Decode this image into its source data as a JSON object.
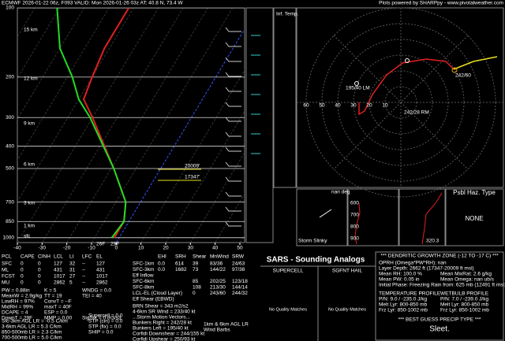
{
  "header": {
    "left": "ECMWF 2026-01-22 06z, F093  VALID: Mon 2026-01-26 03z  AT: 40.8 N, 73.4 W",
    "right": "Plots powered by SHARPpy - www.pivotalweather.com"
  },
  "chart_data": {
    "type": "skewt",
    "ylim": [
      1050,
      100
    ],
    "yticks": [
      100,
      200,
      300,
      400,
      500,
      700,
      850,
      1000
    ],
    "xlim": [
      -40,
      50
    ],
    "xticks": [
      -40,
      -30,
      -20,
      -10,
      0,
      10,
      20,
      30,
      40,
      50
    ],
    "grid": true,
    "pressure": [
      1000,
      850,
      700,
      500,
      300,
      250,
      200,
      150,
      100
    ],
    "series": [
      {
        "color": "#e02020",
        "values": [
          -2,
          -2,
          -6,
          -19,
          -40,
          -48,
          -50,
          -52,
          -52
        ]
      },
      {
        "color": "#22dd22",
        "values": [
          -3,
          -2,
          -6,
          -19,
          -41,
          -50,
          -58,
          -70,
          -81
        ]
      }
    ],
    "height_labels": [
      "15 km",
      "12 km",
      "9 km",
      "6 km",
      "3 km",
      "1 km",
      "sfc"
    ],
    "surface_dewpoint": "26F",
    "surface_temp": "29F",
    "dgz_top": "20009'",
    "dgz_bottom": "17347'"
  },
  "side_panels": {
    "inf_temp": "Inf. Temp.",
    "nan_deg": "nan deg",
    "storm_slinky": "Storm Slinky",
    "pressures": [
      "600",
      "700",
      "800",
      "900"
    ],
    "theta": "320.3",
    "haz_title": "Psbl Haz. Type",
    "haz_value": "NONE"
  },
  "hodograph": {
    "ring_labels": [
      "10",
      "20",
      "30",
      "40",
      "50",
      "60"
    ],
    "labels": [
      "195/40 LM",
      "242/28 RM",
      "242/60"
    ]
  },
  "thermo": {
    "header": [
      "PCL",
      "CAPE",
      "CINH",
      "LCL",
      "LI",
      "LFC",
      "EL"
    ],
    "rows": [
      [
        "SFC",
        "0",
        "0",
        "127",
        "32",
        "--",
        "127"
      ],
      [
        "ML",
        "0",
        "0",
        "431",
        "31",
        "--",
        "431"
      ],
      [
        "FCST",
        "0",
        "0",
        "1017",
        "27",
        "--",
        "1017"
      ],
      [
        "MU",
        "0",
        "0",
        "2862",
        "5",
        "--",
        "2862"
      ]
    ],
    "indices": [
      [
        "PW = 0.88in",
        "K = 5",
        "WNDG = 0.0"
      ],
      [
        "MeanW = 2.9g/kg",
        "TT = 19",
        "TEI = 40"
      ],
      [
        "LowRH = 97%",
        "ConvT = --F"
      ],
      [
        "MidRH = 99%",
        "maxT = 40F"
      ],
      [
        "DCAPE = 4",
        "ESP = 0.0"
      ],
      [
        "DownT = 29F",
        "MMP = 0.00",
        "SigSvr = 0 m3/s3"
      ]
    ],
    "lapse": [
      "Sfc-3km AGL LR = -0.5 C/km",
      "3-6km AGL LR = 5.3 C/km",
      "850-500mb LR = 2.3 C/km",
      "700-500mb LR = 5.0 C/km"
    ],
    "composites": [
      "Supercell = 0.0",
      "STP (cin) = 0.0",
      "STP (fix) = 0.0",
      "SHIP = 0.0"
    ]
  },
  "kinematics": {
    "header": [
      "EHI",
      "SRH",
      "Shear",
      "MnWind",
      "SRW"
    ],
    "rows": [
      [
        "SFC-1km",
        "0.0",
        "614",
        "39",
        "83/36",
        "24/63"
      ],
      [
        "SFC-3km",
        "0.0",
        "1682",
        "73",
        "144/22",
        "97/38"
      ],
      [
        "Eff Inflow",
        null,
        null,
        null,
        null,
        null
      ],
      [
        "SFC-6km",
        null,
        null,
        "85",
        "202/25",
        "123/18"
      ],
      [
        "SFC-8km",
        null,
        null,
        "108",
        "213/30",
        "144/14"
      ],
      [
        "LCL-EL (Cloud Layer)",
        null,
        null,
        "0",
        "243/60",
        "244/32"
      ],
      [
        "Eff Shear (EBWD)",
        null,
        null,
        null,
        null,
        null
      ]
    ],
    "lines": [
      "BRN Shear = 343 m2/s2",
      "4-6km SR Wind = 233/40 kt",
      "...Storm Motion Vectors...",
      "Bunkers Right = 242/28 kt",
      "Bunkers Left = 195/40 kt",
      "Corfidi Downshear = 244/155 kt",
      "Corfidi Upshear = 250/93 kt"
    ],
    "legend": [
      "1km & 6km AGL LR",
      "Wind Barbs"
    ]
  },
  "sars": {
    "title": "SARS - Sounding Analogs",
    "supercell": "SUPERCELL",
    "hail": "SGFNT HAIL",
    "no_match": [
      "No Quality Matches",
      "No Quality Matches"
    ]
  },
  "dgz": {
    "title": "*** DENDRITIC GROWTH ZONE (-12 TO -17 C) ***",
    "lines": [
      "OPRH (Omega*PW*RH): nan",
      "Layer Depth: 2662 ft (17347-20009 ft msl)"
    ],
    "pairs": [
      [
        "Mean RH: 100.0 %",
        "Mean MixRat: 2.6 g/kg"
      ],
      [
        "Mean PW: 0.05 in",
        "Mean Omega: nan ub/s"
      ]
    ],
    "phase": "Initial Phase: Freezing Rain from: 625 mb (12491 ft msl; -4",
    "profiles": [
      [
        "TEMPERATURE PROFILE",
        "WETBULB PROFILE"
      ],
      [
        "P/N: 9.0 / -235.0 J/kg",
        "P/N: 7.0 / -239.0 J/kg"
      ],
      [
        "Melt Lyr: 800-850 mb",
        "Melt Lyr: 800-850 mb"
      ],
      [
        "Frz Lyr: 850-1002 mb",
        "Frz Lyr: 850-1002 mb"
      ]
    ],
    "precip_title": "*** BEST GUESS PRECIP TYPE ***",
    "precip": "Sleet."
  }
}
